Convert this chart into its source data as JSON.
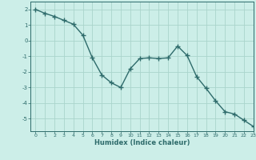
{
  "x": [
    0,
    1,
    2,
    3,
    4,
    5,
    6,
    7,
    8,
    9,
    10,
    11,
    12,
    13,
    14,
    15,
    16,
    17,
    18,
    19,
    20,
    21,
    22,
    23
  ],
  "y": [
    2.0,
    1.75,
    1.55,
    1.3,
    1.05,
    0.35,
    -1.1,
    -2.2,
    -2.7,
    -3.0,
    -1.8,
    -1.15,
    -1.1,
    -1.15,
    -1.1,
    -0.35,
    -0.95,
    -2.3,
    -3.05,
    -3.85,
    -4.55,
    -4.7,
    -5.1,
    -5.5
  ],
  "line_color": "#2e6b6b",
  "marker": "+",
  "marker_size": 4,
  "linewidth": 1.0,
  "xlabel": "Humidex (Indice chaleur)",
  "bg_color": "#cceee8",
  "grid_color": "#aad4cc",
  "xlim": [
    -0.5,
    23
  ],
  "ylim": [
    -5.8,
    2.5
  ],
  "yticks": [
    -5,
    -4,
    -3,
    -2,
    -1,
    0,
    1,
    2
  ],
  "xticks": [
    0,
    1,
    2,
    3,
    4,
    5,
    6,
    7,
    8,
    9,
    10,
    11,
    12,
    13,
    14,
    15,
    16,
    17,
    18,
    19,
    20,
    21,
    22,
    23
  ]
}
